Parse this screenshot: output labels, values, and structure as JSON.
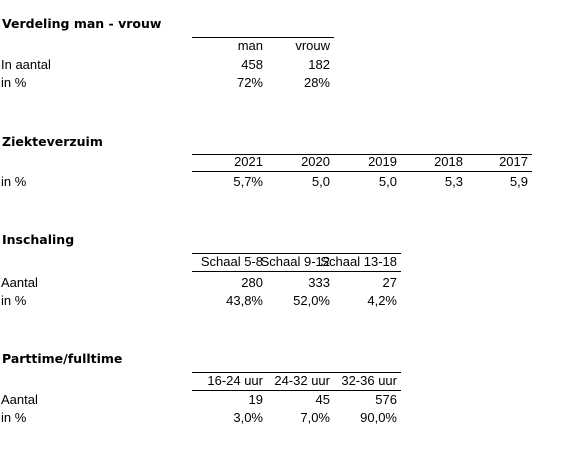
{
  "sections": [
    {
      "title": "Verdeling man - vrouw",
      "headers": [
        "man",
        "vrouw"
      ],
      "rows": [
        {
          "label": "In aantal",
          "cells": [
            "458",
            "182"
          ]
        },
        {
          "label": "in %",
          "cells": [
            "72%",
            "28%"
          ]
        }
      ]
    },
    {
      "title": "Ziekteverzuim",
      "headers": [
        "2021",
        "2020",
        "2019",
        "2018",
        "2017"
      ],
      "rows": [
        {
          "label": "in %",
          "cells": [
            "5,7%",
            "5,0",
            "5,0",
            "5,3",
            "5,9"
          ]
        }
      ]
    },
    {
      "title": "Inschaling",
      "headers": [
        "Schaal 5-8",
        "Schaal 9-12",
        "Schaal 13-18"
      ],
      "rows": [
        {
          "label": "Aantal",
          "cells": [
            "280",
            "333",
            "27"
          ]
        },
        {
          "label": "in %",
          "cells": [
            "43,8%",
            "52,0%",
            "4,2%"
          ]
        }
      ]
    },
    {
      "title": "Parttime/fulltime",
      "headers": [
        "16-24 uur",
        "24-32 uur",
        "32-36 uur"
      ],
      "rows": [
        {
          "label": "Aantal",
          "cells": [
            "19",
            "45",
            "576"
          ]
        },
        {
          "label": "in %",
          "cells": [
            "3,0%",
            "7,0%",
            "90,0%"
          ]
        }
      ]
    }
  ]
}
